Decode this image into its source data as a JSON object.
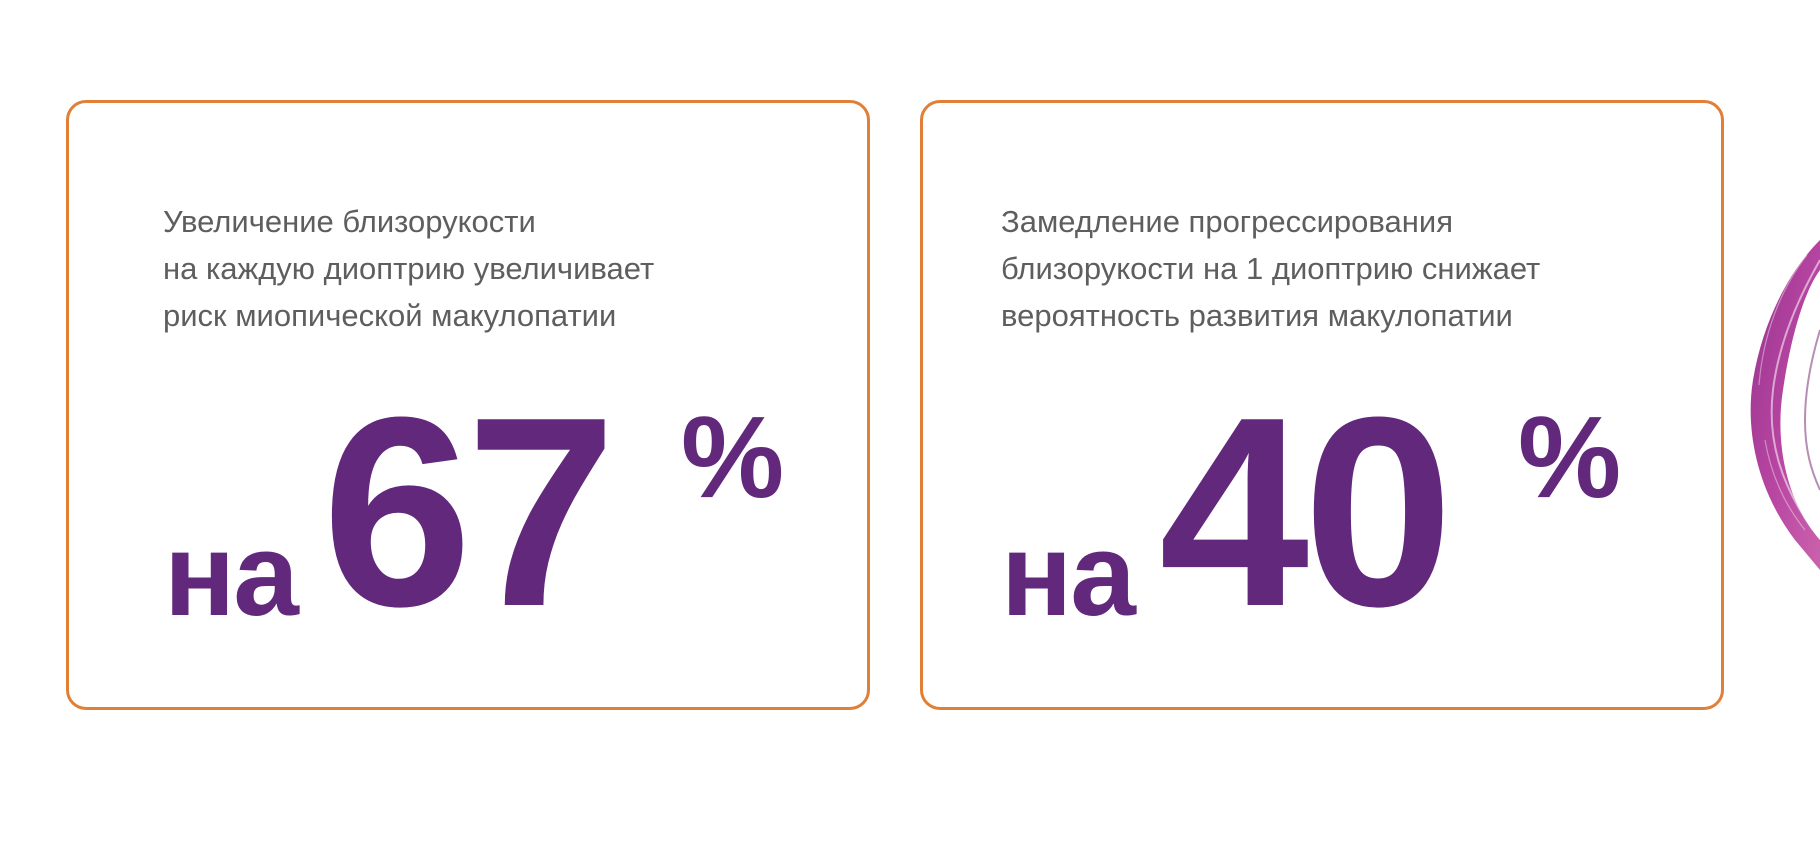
{
  "cards": [
    {
      "description_lines": [
        "Увеличение близорукости",
        "на каждую диоптрию увеличивает",
        "риск миопической макулопатии"
      ],
      "prefix": "на",
      "value": "67",
      "unit": "%"
    },
    {
      "description_lines": [
        "Замедление прогрессирования",
        "близорукости на 1 диоптрию снижает",
        "вероятность развития макулопатии"
      ],
      "prefix": "на",
      "value": "40",
      "unit": "%"
    }
  ],
  "colors": {
    "accent_border": "#e07f35",
    "stat_purple": "#62287b",
    "body_text": "#5e5e5e",
    "brush_magenta": "#b23a9c"
  },
  "decorations": {
    "brush_stroke": "brush-stroke-icon"
  }
}
